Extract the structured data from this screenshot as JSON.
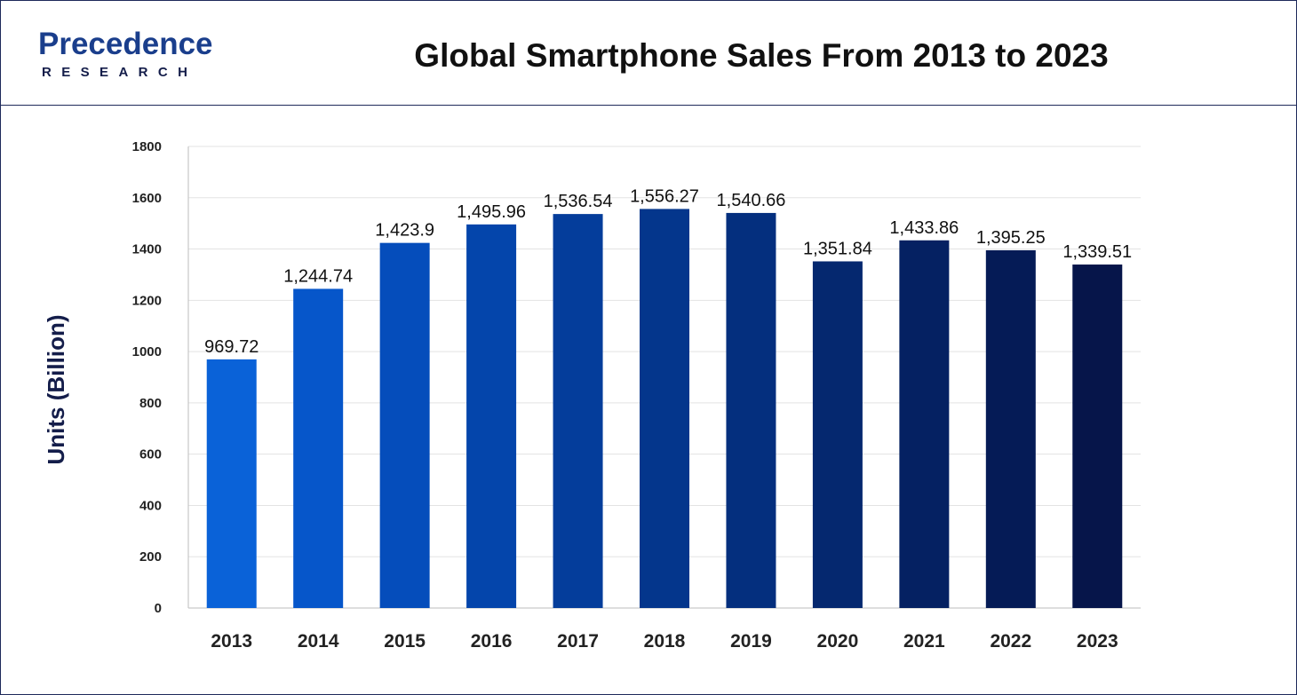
{
  "brand": {
    "name": "Precedence",
    "sub": "RESEARCH",
    "colors": {
      "primary": "#1a3e8c",
      "dark": "#141d4a",
      "accent": "#2f7be0"
    }
  },
  "chart_data": {
    "type": "bar",
    "title": "Global Smartphone Sales From 2013 to 2023",
    "xlabel": "",
    "ylabel": "Units (Billion)",
    "ylim": [
      0,
      1800
    ],
    "yticks": [
      0,
      200,
      400,
      600,
      800,
      1000,
      1200,
      1400,
      1600,
      1800
    ],
    "grid": true,
    "legend": "none",
    "categories": [
      "2013",
      "2014",
      "2015",
      "2016",
      "2017",
      "2018",
      "2019",
      "2020",
      "2021",
      "2022",
      "2023"
    ],
    "values": [
      969.72,
      1244.74,
      1423.9,
      1495.96,
      1536.54,
      1556.27,
      1540.66,
      1351.84,
      1433.86,
      1395.25,
      1339.51
    ],
    "value_labels": [
      "969.72",
      "1,244.74",
      "1,423.9",
      "1,495.96",
      "1,536.54",
      "1,556.27",
      "1,540.66",
      "1,351.84",
      "1,433.86",
      "1,395.25",
      "1,339.51"
    ],
    "bar_colors": [
      "#0a62d8",
      "#0656ca",
      "#054dbb",
      "#0445ab",
      "#043d9b",
      "#04368c",
      "#042f7e",
      "#05286f",
      "#052162",
      "#051b56",
      "#06154a"
    ]
  }
}
